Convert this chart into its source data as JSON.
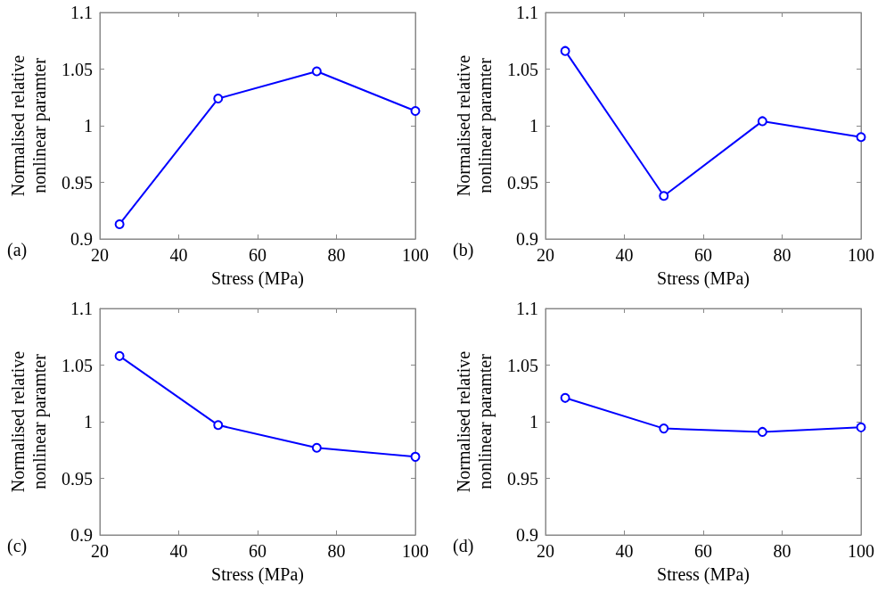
{
  "chart_data": [
    {
      "type": "line",
      "xlabel": "Stress (MPa)",
      "ylabel": "Normalised relative\nnonlinear paramter",
      "annotations": [
        "(a)"
      ],
      "x": [
        25,
        50,
        75,
        100
      ],
      "series": [
        {
          "color": "#0000ff",
          "values": [
            0.913,
            1.024,
            1.048,
            1.013
          ]
        }
      ],
      "xlim": [
        20,
        100
      ],
      "xticks": [
        20,
        40,
        60,
        80,
        100
      ],
      "ylim": [
        0.9,
        1.1
      ],
      "yticks": [
        0.9,
        0.95,
        1,
        1.05,
        1.1
      ],
      "marker": "circle"
    },
    {
      "type": "line",
      "xlabel": "Stress (MPa)",
      "ylabel": "Normalised relative\nnonlinear paramter",
      "annotations": [
        "(b)"
      ],
      "x": [
        25,
        50,
        75,
        100
      ],
      "series": [
        {
          "color": "#0000ff",
          "values": [
            1.066,
            0.938,
            1.004,
            0.99
          ]
        }
      ],
      "xlim": [
        20,
        100
      ],
      "xticks": [
        20,
        40,
        60,
        80,
        100
      ],
      "ylim": [
        0.9,
        1.1
      ],
      "yticks": [
        0.9,
        0.95,
        1,
        1.05,
        1.1
      ],
      "marker": "circle"
    },
    {
      "type": "line",
      "xlabel": "Stress (MPa)",
      "ylabel": "Normalised relative\nnonlinear paramter",
      "annotations": [
        "(c)"
      ],
      "x": [
        25,
        50,
        75,
        100
      ],
      "series": [
        {
          "color": "#0000ff",
          "values": [
            1.058,
            0.997,
            0.977,
            0.969
          ]
        }
      ],
      "xlim": [
        20,
        100
      ],
      "xticks": [
        20,
        40,
        60,
        80,
        100
      ],
      "ylim": [
        0.9,
        1.1
      ],
      "yticks": [
        0.9,
        0.95,
        1,
        1.05,
        1.1
      ],
      "marker": "circle"
    },
    {
      "type": "line",
      "xlabel": "Stress (MPa)",
      "ylabel": "Normalised relative\nnonlinear paramter",
      "annotations": [
        "(d)"
      ],
      "x": [
        25,
        50,
        75,
        100
      ],
      "series": [
        {
          "color": "#0000ff",
          "values": [
            1.021,
            0.994,
            0.991,
            0.995
          ]
        }
      ],
      "xlim": [
        20,
        100
      ],
      "xticks": [
        20,
        40,
        60,
        80,
        100
      ],
      "ylim": [
        0.9,
        1.1
      ],
      "yticks": [
        0.9,
        0.95,
        1,
        1.05,
        1.1
      ],
      "marker": "circle"
    }
  ]
}
